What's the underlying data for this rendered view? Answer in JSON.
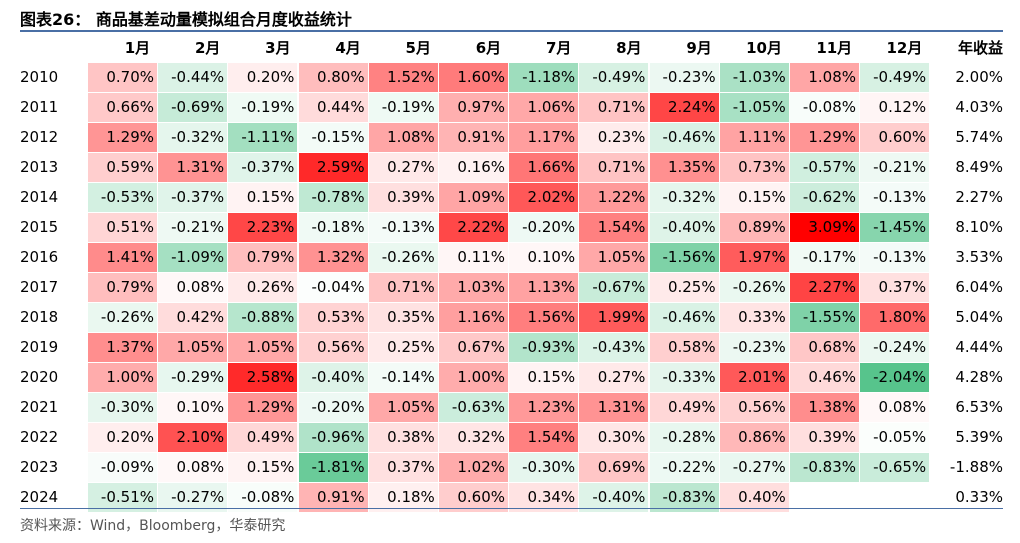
{
  "title": "图表26：  商品基差动量模拟组合月度收益统计",
  "source": "资料来源：Wind，Bloomberg，华泰研究",
  "colors": {
    "positive_max": "#ff0000",
    "negative_max": "#00a651",
    "neutral": "#ffffff"
  },
  "chart_data": {
    "type": "heatmap",
    "title": "商品基差动量模拟组合月度收益统计",
    "unit": "%",
    "columns": [
      "1月",
      "2月",
      "3月",
      "4月",
      "5月",
      "6月",
      "7月",
      "8月",
      "9月",
      "10月",
      "11月",
      "12月"
    ],
    "annual_header": "年收益",
    "rows": [
      {
        "year": "2010",
        "values": [
          "0.70%",
          "-0.44%",
          "0.20%",
          "0.80%",
          "1.52%",
          "1.60%",
          "-1.18%",
          "-0.49%",
          "-0.23%",
          "-1.03%",
          "1.08%",
          "-0.49%"
        ],
        "annual": "2.00%"
      },
      {
        "year": "2011",
        "values": [
          "0.66%",
          "-0.69%",
          "-0.19%",
          "0.44%",
          "-0.19%",
          "0.97%",
          "1.06%",
          "0.71%",
          "2.24%",
          "-1.05%",
          "-0.08%",
          "0.12%"
        ],
        "annual": "4.03%"
      },
      {
        "year": "2012",
        "values": [
          "1.29%",
          "-0.32%",
          "-1.11%",
          "-0.15%",
          "1.08%",
          "0.91%",
          "1.17%",
          "0.23%",
          "-0.46%",
          "1.11%",
          "1.29%",
          "0.60%"
        ],
        "annual": "5.74%"
      },
      {
        "year": "2013",
        "values": [
          "0.59%",
          "1.31%",
          "-0.37%",
          "2.59%",
          "0.27%",
          "0.16%",
          "1.66%",
          "0.71%",
          "1.35%",
          "0.73%",
          "-0.57%",
          "-0.21%"
        ],
        "annual": "8.49%"
      },
      {
        "year": "2014",
        "values": [
          "-0.53%",
          "-0.37%",
          "0.15%",
          "-0.78%",
          "0.39%",
          "1.09%",
          "2.02%",
          "1.22%",
          "-0.32%",
          "0.15%",
          "-0.62%",
          "-0.13%"
        ],
        "annual": "2.27%"
      },
      {
        "year": "2015",
        "values": [
          "0.51%",
          "-0.21%",
          "2.23%",
          "-0.18%",
          "-0.13%",
          "2.22%",
          "-0.20%",
          "1.54%",
          "-0.40%",
          "0.89%",
          "3.09%",
          "-1.45%"
        ],
        "annual": "8.10%"
      },
      {
        "year": "2016",
        "values": [
          "1.41%",
          "-1.09%",
          "0.79%",
          "1.32%",
          "-0.26%",
          "0.11%",
          "0.10%",
          "1.05%",
          "-1.56%",
          "1.97%",
          "-0.17%",
          "-0.13%"
        ],
        "annual": "3.53%"
      },
      {
        "year": "2017",
        "values": [
          "0.79%",
          "0.08%",
          "0.26%",
          "-0.04%",
          "0.71%",
          "1.03%",
          "1.13%",
          "-0.67%",
          "0.25%",
          "-0.26%",
          "2.27%",
          "0.37%"
        ],
        "annual": "6.04%"
      },
      {
        "year": "2018",
        "values": [
          "-0.26%",
          "0.42%",
          "-0.88%",
          "0.53%",
          "0.35%",
          "1.16%",
          "1.56%",
          "1.99%",
          "-0.46%",
          "0.33%",
          "-1.55%",
          "1.80%"
        ],
        "annual": "5.04%"
      },
      {
        "year": "2019",
        "values": [
          "1.37%",
          "1.05%",
          "1.05%",
          "0.56%",
          "0.25%",
          "0.67%",
          "-0.93%",
          "-0.43%",
          "0.58%",
          "-0.23%",
          "0.68%",
          "-0.24%"
        ],
        "annual": "4.44%"
      },
      {
        "year": "2020",
        "values": [
          "1.00%",
          "-0.29%",
          "2.58%",
          "-0.40%",
          "-0.14%",
          "1.00%",
          "0.15%",
          "0.27%",
          "-0.33%",
          "2.01%",
          "0.46%",
          "-2.04%"
        ],
        "annual": "4.28%"
      },
      {
        "year": "2021",
        "values": [
          "-0.30%",
          "0.10%",
          "1.29%",
          "-0.20%",
          "1.05%",
          "-0.63%",
          "1.23%",
          "1.31%",
          "0.49%",
          "0.56%",
          "1.38%",
          "0.08%"
        ],
        "annual": "6.53%"
      },
      {
        "year": "2022",
        "values": [
          "0.20%",
          "2.10%",
          "0.49%",
          "-0.96%",
          "0.38%",
          "0.32%",
          "1.54%",
          "0.30%",
          "-0.28%",
          "0.86%",
          "0.39%",
          "-0.05%"
        ],
        "annual": "5.39%"
      },
      {
        "year": "2023",
        "values": [
          "-0.09%",
          "0.08%",
          "0.15%",
          "-1.81%",
          "0.37%",
          "1.02%",
          "-0.30%",
          "0.69%",
          "-0.22%",
          "-0.27%",
          "-0.83%",
          "-0.65%"
        ],
        "annual": "-1.88%"
      },
      {
        "year": "2024",
        "values": [
          "-0.51%",
          "-0.27%",
          "-0.08%",
          "0.91%",
          "0.18%",
          "0.60%",
          "0.34%",
          "-0.40%",
          "-0.83%",
          "0.40%",
          "",
          ""
        ],
        "annual": "0.33%"
      }
    ]
  }
}
